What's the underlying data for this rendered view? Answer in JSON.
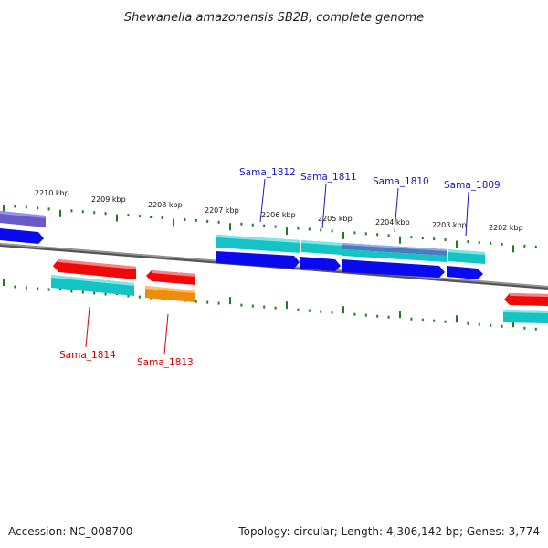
{
  "title": "Shewanella amazonensis SB2B, complete genome",
  "footer": {
    "accession": "Accession: NC_008700",
    "summary": "Topology: circular; Length: 4,306,142 bp; Genes: 3,774"
  },
  "colors": {
    "backbone": "#7a7a7a",
    "tick": "#1e7d1e",
    "label_forward": "#1515c8",
    "label_reverse": "#d40000",
    "cds_forward": "#0a0aee",
    "cds_reverse": "#ee0a0a",
    "gene_teal": "#14c4c4",
    "gene_orange": "#ef8c0a",
    "gene_steel": "#4a7ac0",
    "gene_slate": "#6a5ac8"
  },
  "scale_labels": [
    "2210 kbp",
    "2209 kbp",
    "2208 kbp",
    "2207 kbp",
    "2206 kbp",
    "2205 kbp",
    "2204 kbp",
    "2203 kbp",
    "2202 kbp"
  ],
  "gene_labels": {
    "forward": [
      "Sama_1812",
      "Sama_1811",
      "Sama_1810",
      "Sama_1809"
    ],
    "reverse": [
      "Sama_1814",
      "Sama_1813"
    ]
  }
}
